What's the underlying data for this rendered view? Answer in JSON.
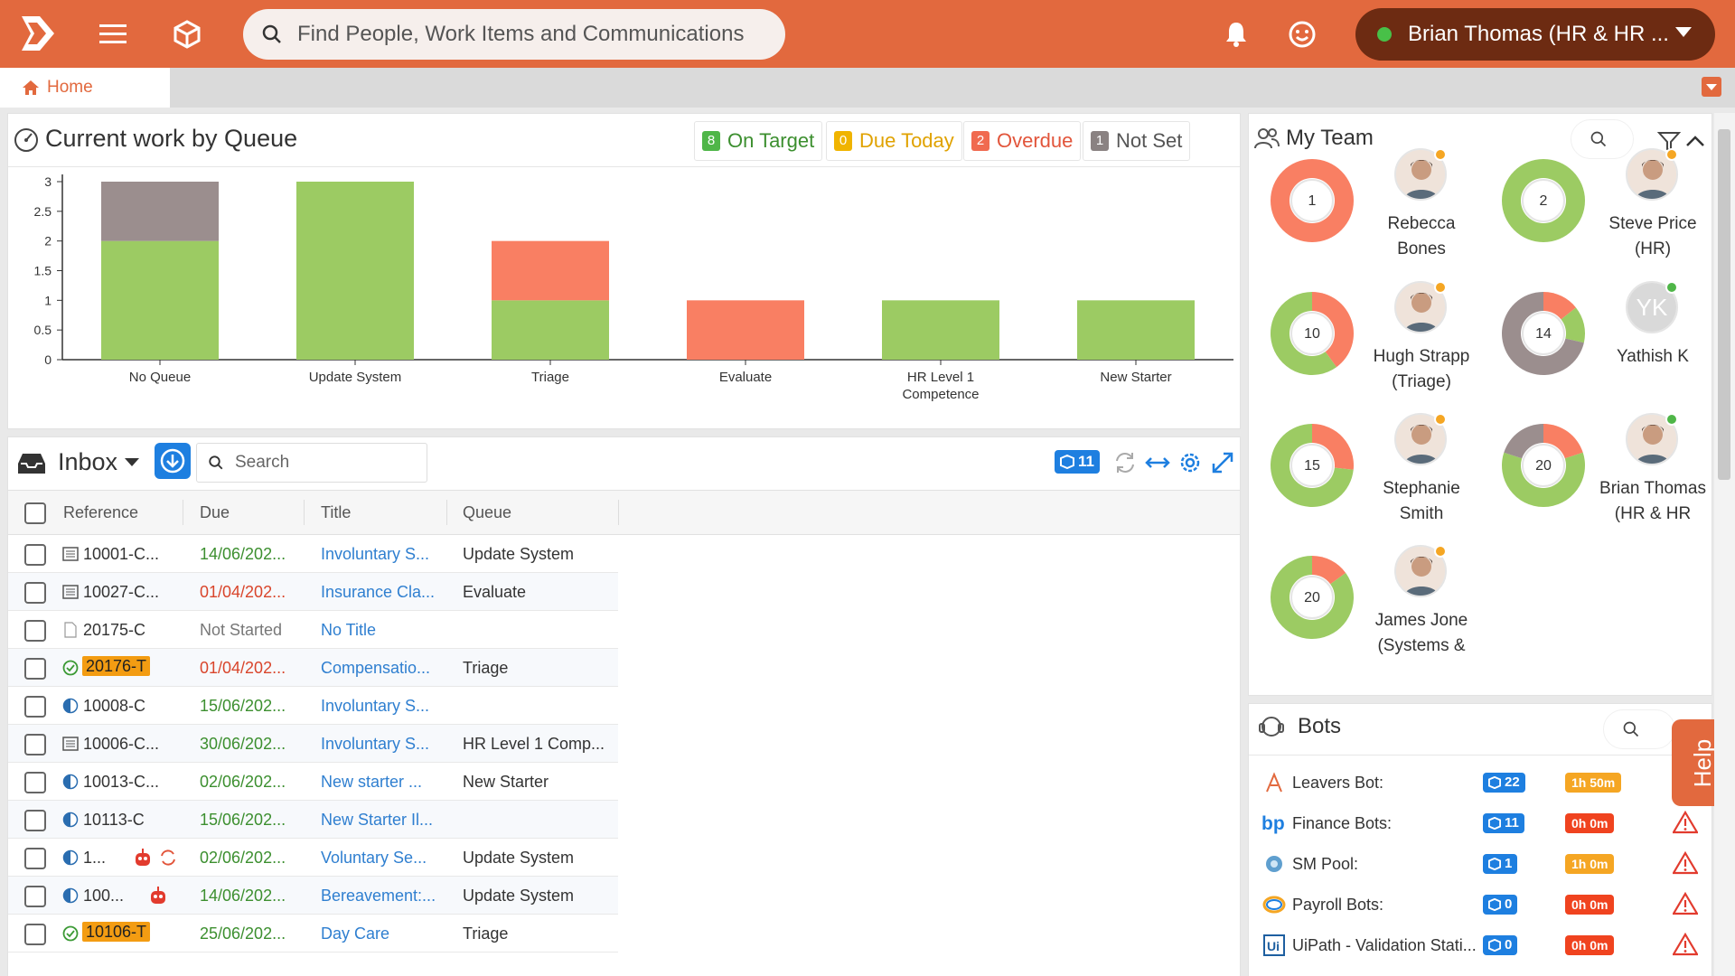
{
  "header": {
    "search_placeholder": "Find People, Work Items and Communications",
    "user_label": "Brian Thomas (HR & HR ...",
    "accent": "#e2693e"
  },
  "tabs": {
    "home_label": "Home"
  },
  "queue_panel": {
    "title": "Current work by Queue",
    "legend": [
      {
        "count": "8",
        "label": "On Target",
        "color": "#4fb648",
        "text_color": "#3c8f2f"
      },
      {
        "count": "0",
        "label": "Due Today",
        "color": "#f0b400",
        "text_color": "#e0a200"
      },
      {
        "count": "2",
        "label": "Overdue",
        "color": "#f06a50",
        "text_color": "#e2553b"
      },
      {
        "count": "1",
        "label": "Not Set",
        "color": "#8a8282",
        "text_color": "#555555"
      }
    ]
  },
  "chart_data": {
    "type": "bar",
    "stacked": true,
    "categories": [
      "No Queue",
      "Update System",
      "Triage",
      "Evaluate",
      "HR Level 1 Competence",
      "New Starter"
    ],
    "series": [
      {
        "name": "On Target",
        "color": "#9ccb63",
        "values": [
          2,
          3,
          1,
          0,
          1,
          1
        ]
      },
      {
        "name": "Overdue",
        "color": "#f97f63",
        "values": [
          0,
          0,
          1,
          1,
          0,
          0
        ]
      },
      {
        "name": "Not Set",
        "color": "#9b8e8e",
        "values": [
          1,
          0,
          0,
          0,
          0,
          0
        ]
      }
    ],
    "ylim": [
      0,
      3
    ],
    "yticks": [
      "0",
      "0.5",
      "1",
      "1.5",
      "2",
      "2.5",
      "3"
    ]
  },
  "inbox": {
    "title": "Inbox",
    "search_placeholder": "Search",
    "count_badge": "11",
    "columns": [
      "Reference",
      "Due",
      "Title",
      "Queue"
    ],
    "rows": [
      {
        "ref": "10001-C...",
        "icon": "form-icon",
        "due": "14/06/202...",
        "due_color": "#3c8f2f",
        "title": "Involuntary S...",
        "queue": "Update System"
      },
      {
        "ref": "10027-C...",
        "icon": "form-icon",
        "due": "01/04/202...",
        "due_color": "#d9452b",
        "title": "Insurance Cla...",
        "queue": "Evaluate"
      },
      {
        "ref": "20175-C",
        "icon": "document-icon",
        "due": "Not Started",
        "due_color": "#777777",
        "title": "No Title",
        "queue": ""
      },
      {
        "ref": "20176-T",
        "icon": "check-circle-icon",
        "due": "01/04/202...",
        "due_color": "#d9452b",
        "title": "Compensatio...",
        "queue": "Triage",
        "tag": true
      },
      {
        "ref": "10008-C",
        "icon": "half-circle-icon",
        "due": "15/06/202...",
        "due_color": "#3c8f2f",
        "title": "Involuntary S...",
        "queue": ""
      },
      {
        "ref": "10006-C...",
        "icon": "form-icon",
        "due": "30/06/202...",
        "due_color": "#3c8f2f",
        "title": "Involuntary S...",
        "queue": "HR Level 1 Comp..."
      },
      {
        "ref": "10013-C...",
        "icon": "half-circle-icon",
        "due": "02/06/202...",
        "due_color": "#3c8f2f",
        "title": "New starter ...",
        "queue": "New Starter"
      },
      {
        "ref": "10113-C",
        "icon": "half-circle-icon",
        "due": "15/06/202...",
        "due_color": "#3c8f2f",
        "title": "New Starter Il...",
        "queue": ""
      },
      {
        "ref": "1...",
        "icon": "half-circle-icon",
        "due": "02/06/202...",
        "due_color": "#3c8f2f",
        "title": "Voluntary Se...",
        "queue": "Update System",
        "extra": "bot-refresh"
      },
      {
        "ref": "100...",
        "icon": "half-circle-icon",
        "due": "14/06/202...",
        "due_color": "#3c8f2f",
        "title": "Bereavement:...",
        "queue": "Update System",
        "extra": "bot"
      },
      {
        "ref": "10106-T",
        "icon": "check-circle-icon",
        "due": "25/06/202...",
        "due_color": "#3c8f2f",
        "title": "Day Care",
        "queue": "Triage",
        "tag": true
      }
    ]
  },
  "team": {
    "title": "My Team",
    "members": [
      {
        "name_l1": "Rebecca",
        "name_l2": "Bones",
        "count": "1",
        "status": "#f5a623",
        "on_target": 0,
        "overdue": 1,
        "not_set": 0,
        "initials": ""
      },
      {
        "name_l1": "Steve Price",
        "name_l2": "(HR)",
        "count": "2",
        "status": "#f5a623",
        "on_target": 2,
        "overdue": 0,
        "not_set": 0,
        "initials": ""
      },
      {
        "name_l1": "Hugh Strapp",
        "name_l2": "(Triage)",
        "count": "10",
        "status": "#f5a623",
        "on_target": 6,
        "overdue": 4,
        "not_set": 0,
        "initials": ""
      },
      {
        "name_l1": "Yathish K",
        "name_l2": "",
        "count": "14",
        "status": "#4fb648",
        "on_target": 2,
        "overdue": 2,
        "not_set": 10,
        "initials": "YK"
      },
      {
        "name_l1": "Stephanie",
        "name_l2": "Smith",
        "count": "15",
        "status": "#f5a623",
        "on_target": 11,
        "overdue": 4,
        "not_set": 0,
        "initials": ""
      },
      {
        "name_l1": "Brian Thomas",
        "name_l2": "(HR & HR",
        "count": "20",
        "status": "#4fb648",
        "on_target": 12,
        "overdue": 4,
        "not_set": 4,
        "initials": ""
      },
      {
        "name_l1": "James Jone",
        "name_l2": "(Systems &",
        "count": "20",
        "status": "#f5a623",
        "on_target": 17,
        "overdue": 3,
        "not_set": 0,
        "initials": ""
      }
    ]
  },
  "bots": {
    "title": "Bots",
    "items": [
      {
        "name": "Leavers Bot:",
        "icon": "leavers-bot-icon",
        "queue": "22",
        "time": "1h 50m",
        "time_color": "#f5a623",
        "warn": false
      },
      {
        "name": "Finance Bots:",
        "icon": "bp-logo-icon",
        "queue": "11",
        "time": "0h 0m",
        "time_color": "#f0431f",
        "warn": true
      },
      {
        "name": "SM Pool:",
        "icon": "sm-pool-icon",
        "queue": "1",
        "time": "1h 0m",
        "time_color": "#f5a623",
        "warn": true
      },
      {
        "name": "Payroll Bots:",
        "icon": "payroll-bot-icon",
        "queue": "0",
        "time": "0h 0m",
        "time_color": "#f0431f",
        "warn": true
      },
      {
        "name": "UiPath - Validation Stati...",
        "icon": "uipath-icon",
        "queue": "0",
        "time": "0h 0m",
        "time_color": "#f0431f",
        "warn": true
      }
    ]
  },
  "help_label": "Help"
}
